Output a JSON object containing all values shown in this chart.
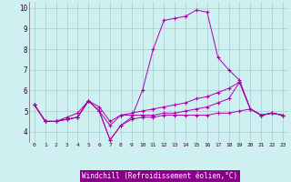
{
  "xlabel": "Windchill (Refroidissement éolien,°C)",
  "bg_color": "#cff0f0",
  "line_color": "#aa00aa",
  "grid_color": "#aacccc",
  "xlabel_bg": "#9900aa",
  "xlabel_fg": "#ffffff",
  "xlim": [
    -0.5,
    23.5
  ],
  "ylim": [
    3.5,
    10.3
  ],
  "xticks": [
    0,
    1,
    2,
    3,
    4,
    5,
    6,
    7,
    8,
    9,
    10,
    11,
    12,
    13,
    14,
    15,
    16,
    17,
    18,
    19,
    20,
    21,
    22,
    23
  ],
  "yticks": [
    4,
    5,
    6,
    7,
    8,
    9,
    10
  ],
  "series": [
    [
      5.3,
      4.5,
      4.5,
      4.6,
      4.7,
      5.5,
      5.0,
      3.6,
      4.3,
      4.6,
      4.7,
      4.7,
      4.8,
      4.8,
      4.8,
      4.8,
      4.8,
      4.9,
      4.9,
      5.0,
      5.1,
      4.8,
      4.9,
      4.8
    ],
    [
      5.3,
      4.5,
      4.5,
      4.6,
      4.7,
      5.5,
      5.0,
      3.6,
      4.3,
      4.7,
      6.0,
      8.0,
      9.4,
      9.5,
      9.6,
      9.9,
      9.8,
      7.6,
      7.0,
      6.5,
      5.1,
      4.8,
      4.9,
      4.8
    ],
    [
      5.3,
      4.5,
      4.5,
      4.6,
      4.7,
      5.5,
      5.0,
      4.3,
      4.8,
      4.8,
      4.8,
      4.8,
      4.9,
      4.9,
      5.0,
      5.1,
      5.2,
      5.4,
      5.6,
      6.4,
      5.1,
      4.8,
      4.9,
      4.8
    ],
    [
      5.3,
      4.5,
      4.5,
      4.7,
      4.9,
      5.5,
      5.2,
      4.5,
      4.8,
      4.9,
      5.0,
      5.1,
      5.2,
      5.3,
      5.4,
      5.6,
      5.7,
      5.9,
      6.1,
      6.4,
      5.1,
      4.8,
      4.9,
      4.8
    ]
  ]
}
